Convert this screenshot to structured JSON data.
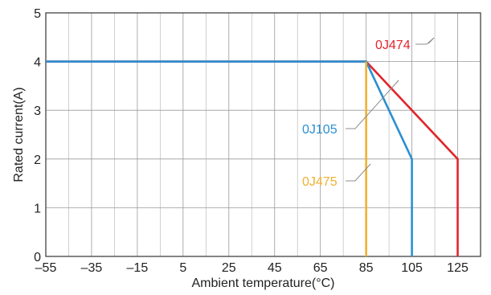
{
  "chart_data": {
    "type": "line",
    "xlabel": "Ambient temperature(°C)",
    "ylabel": "Rated current(A)",
    "xlim": [
      -55,
      135
    ],
    "ylim": [
      0,
      5
    ],
    "x_ticks": [
      "–55",
      "–35",
      "–15",
      "5",
      "25",
      "45",
      "65",
      "85",
      "105",
      "125"
    ],
    "x_tick_values": [
      -55,
      -35,
      -15,
      5,
      25,
      45,
      65,
      85,
      105,
      125
    ],
    "y_ticks": [
      "0",
      "1",
      "2",
      "3",
      "4",
      "5"
    ],
    "y_tick_values": [
      0,
      1,
      2,
      3,
      4,
      5
    ],
    "grid": true,
    "series": [
      {
        "name": "0J474",
        "color": "#e0262d",
        "points": [
          [
            -55,
            4
          ],
          [
            85,
            4
          ],
          [
            125,
            2
          ],
          [
            125,
            0
          ]
        ]
      },
      {
        "name": "0J105",
        "color": "#2b8fd2",
        "points": [
          [
            -55,
            4
          ],
          [
            85,
            4
          ],
          [
            105,
            2
          ],
          [
            105,
            0
          ]
        ]
      },
      {
        "name": "0J475",
        "color": "#f0b030",
        "points": [
          [
            85,
            4
          ],
          [
            85,
            0
          ]
        ]
      }
    ]
  }
}
